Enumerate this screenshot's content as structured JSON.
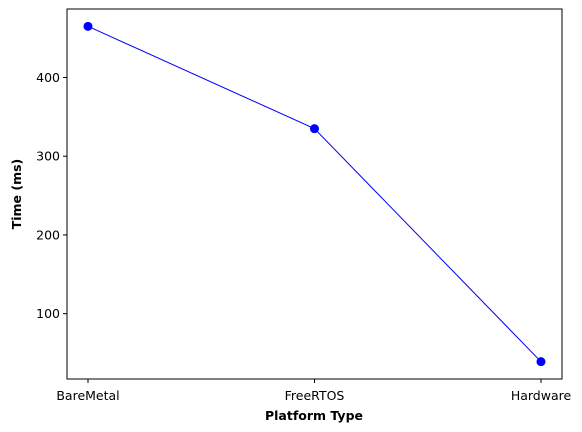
{
  "chart_data": {
    "type": "line",
    "title": "",
    "xlabel": "Platform Type",
    "ylabel": "Time (ms)",
    "categories": [
      "BareMetal",
      "FreeRTOS",
      "Hardware"
    ],
    "series": [
      {
        "values": [
          465,
          335,
          39
        ],
        "color": "#0000ff",
        "marker": "circle"
      }
    ],
    "ylim": [
      17,
      487
    ],
    "yticks": [
      100,
      200,
      300,
      400
    ],
    "grid": false,
    "legend": "none"
  }
}
